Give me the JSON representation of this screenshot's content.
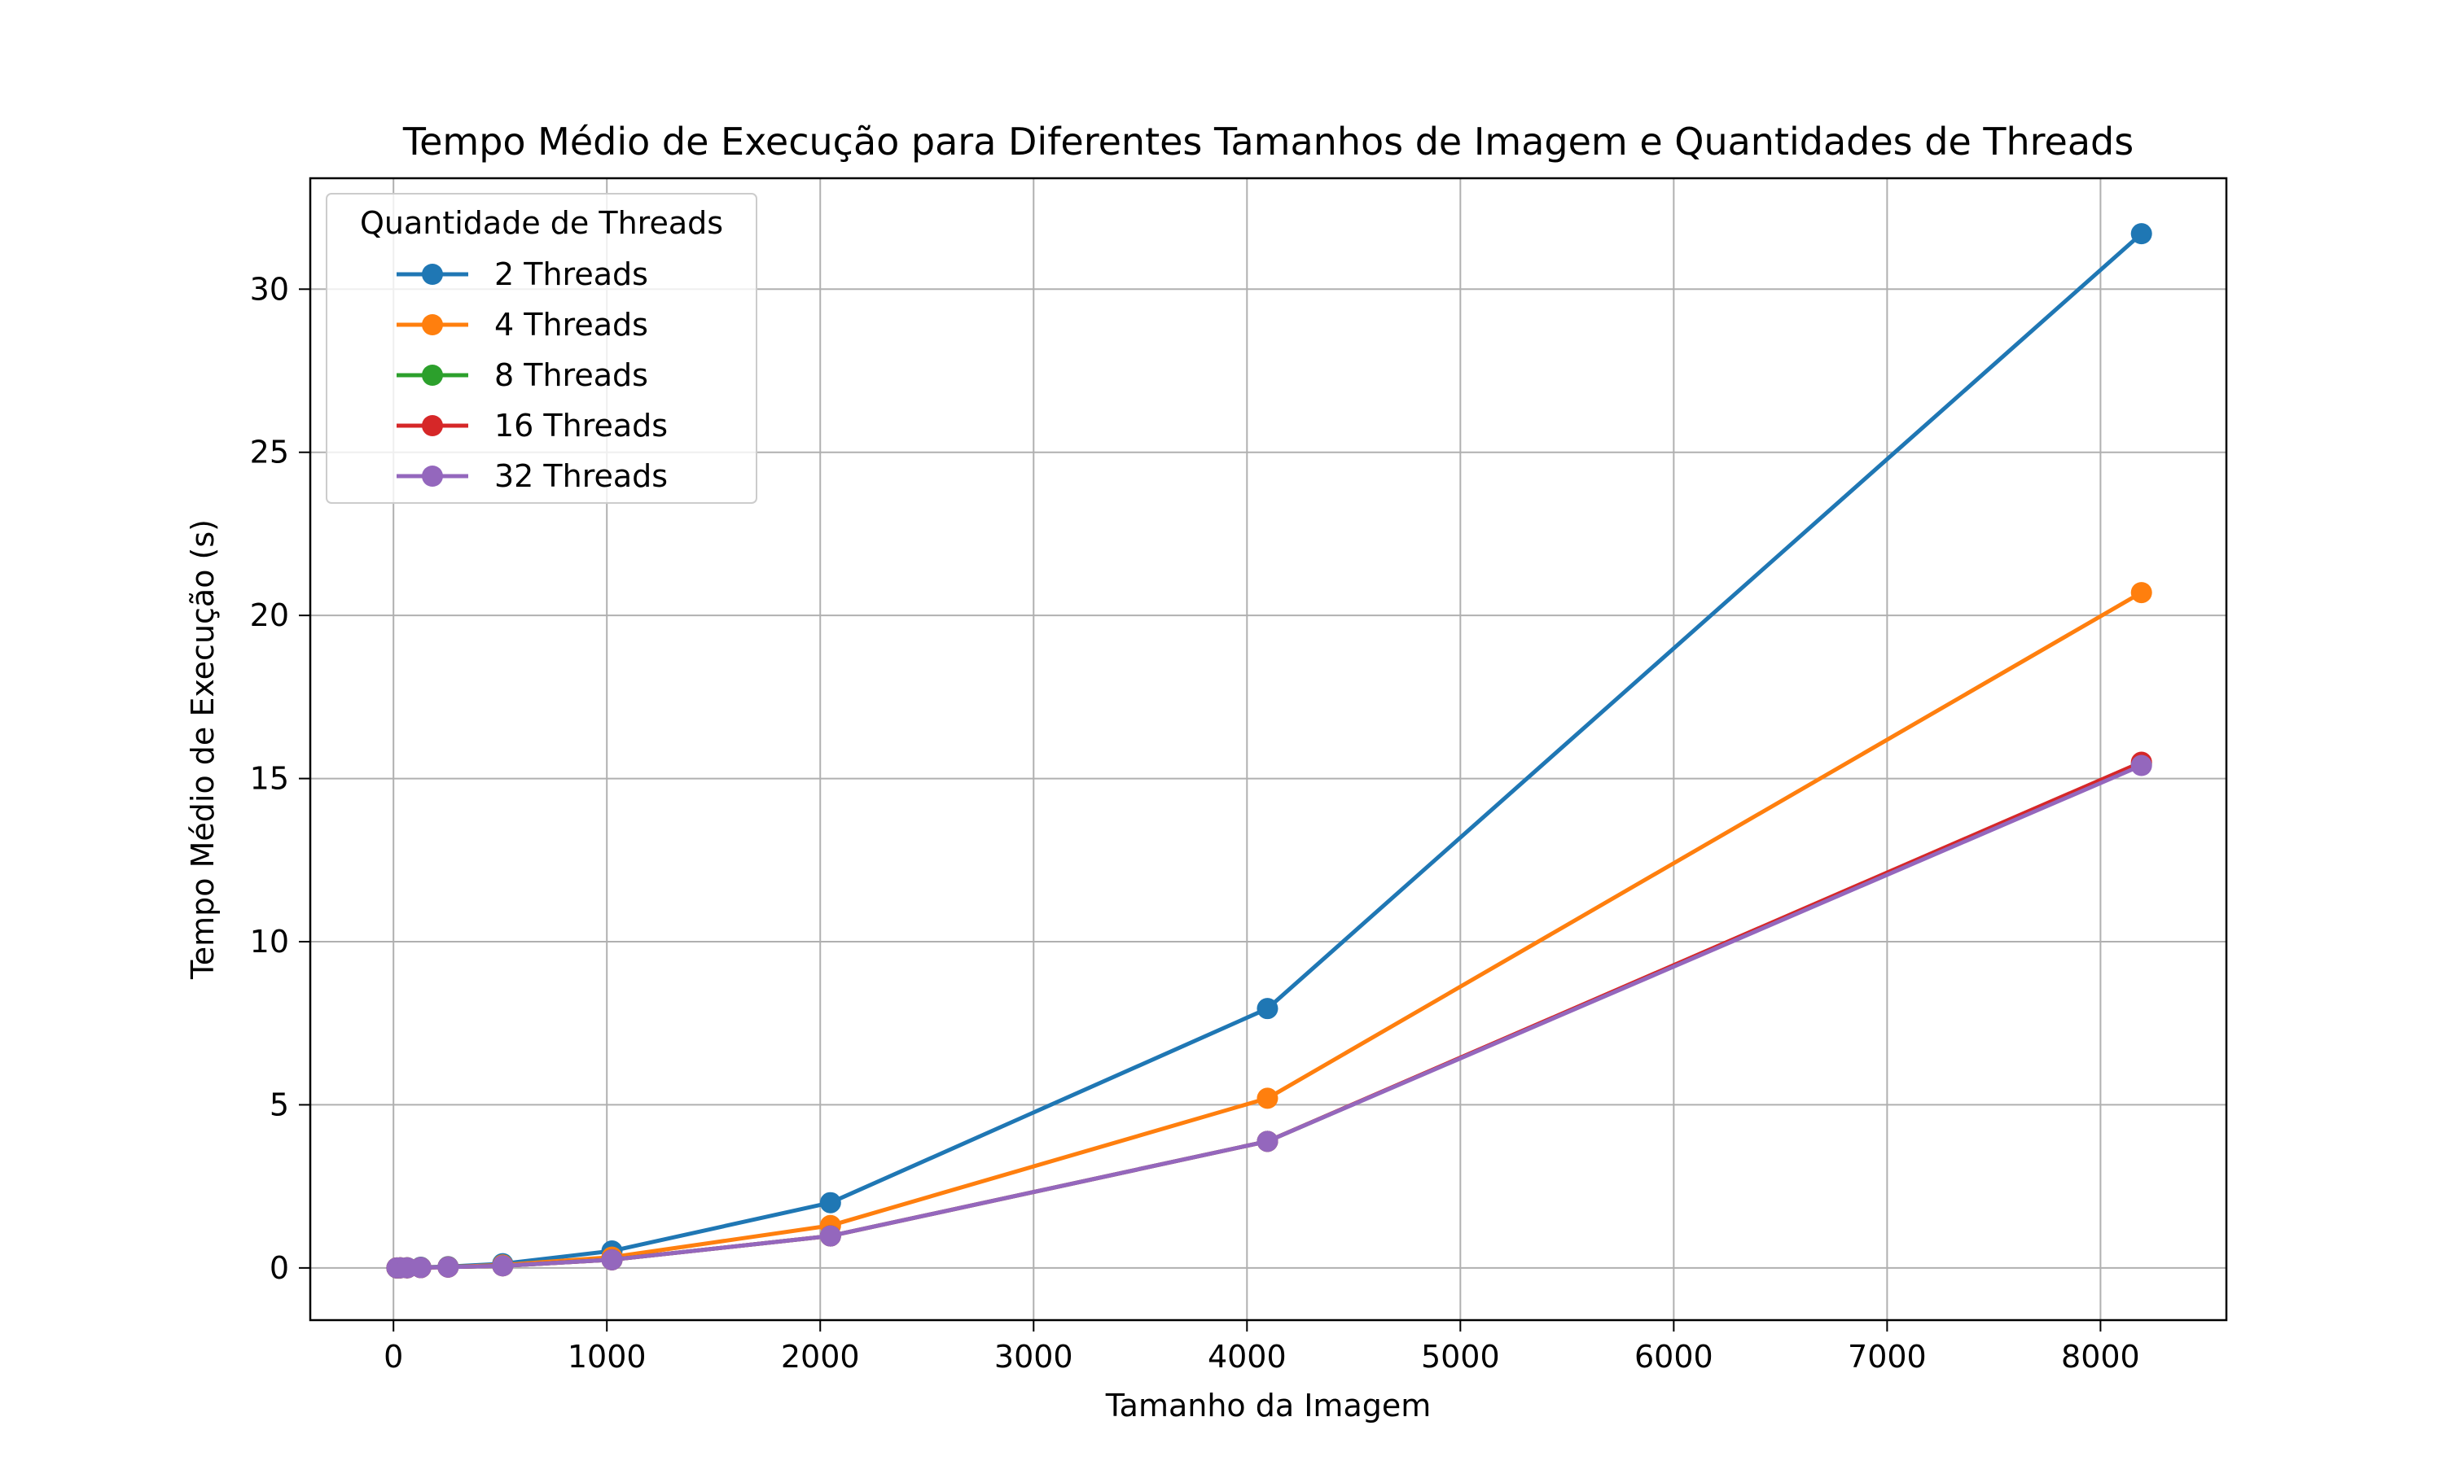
{
  "chart_data": {
    "type": "line",
    "title": "Tempo Médio de Execução para Diferentes Tamanhos de Imagem e Quantidades de Threads",
    "xlabel": "Tamanho da Imagem",
    "ylabel": "Tempo Médio de Execução (s)",
    "xlim": [
      -390,
      8590
    ],
    "ylim": [
      -1.6,
      33.4
    ],
    "xticks": [
      0,
      1000,
      2000,
      3000,
      4000,
      5000,
      6000,
      7000,
      8000
    ],
    "yticks": [
      0,
      5,
      10,
      15,
      20,
      25,
      30
    ],
    "grid": true,
    "legend": {
      "title": "Quantidade de Threads",
      "position": "top-left"
    },
    "x": [
      16,
      32,
      64,
      128,
      256,
      512,
      1024,
      2048,
      4096,
      8192
    ],
    "series": [
      {
        "name": "2 Threads",
        "color": "#1f77b4",
        "values": [
          0.001,
          0.002,
          0.005,
          0.02,
          0.04,
          0.13,
          0.52,
          2.0,
          7.95,
          31.7
        ]
      },
      {
        "name": "4 Threads",
        "color": "#ff7f0e",
        "values": [
          0.001,
          0.002,
          0.004,
          0.013,
          0.03,
          0.09,
          0.33,
          1.3,
          5.2,
          20.7
        ]
      },
      {
        "name": "8 Threads",
        "color": "#2ca02c",
        "values": [
          0.001,
          0.002,
          0.003,
          0.01,
          0.025,
          0.065,
          0.25,
          0.98,
          3.88,
          15.45
        ]
      },
      {
        "name": "16 Threads",
        "color": "#d62728",
        "values": [
          0.001,
          0.002,
          0.003,
          0.01,
          0.025,
          0.065,
          0.25,
          0.98,
          3.88,
          15.5
        ]
      },
      {
        "name": "32 Threads",
        "color": "#9467bd",
        "values": [
          0.001,
          0.002,
          0.003,
          0.01,
          0.025,
          0.065,
          0.25,
          0.98,
          3.88,
          15.4
        ]
      }
    ]
  }
}
